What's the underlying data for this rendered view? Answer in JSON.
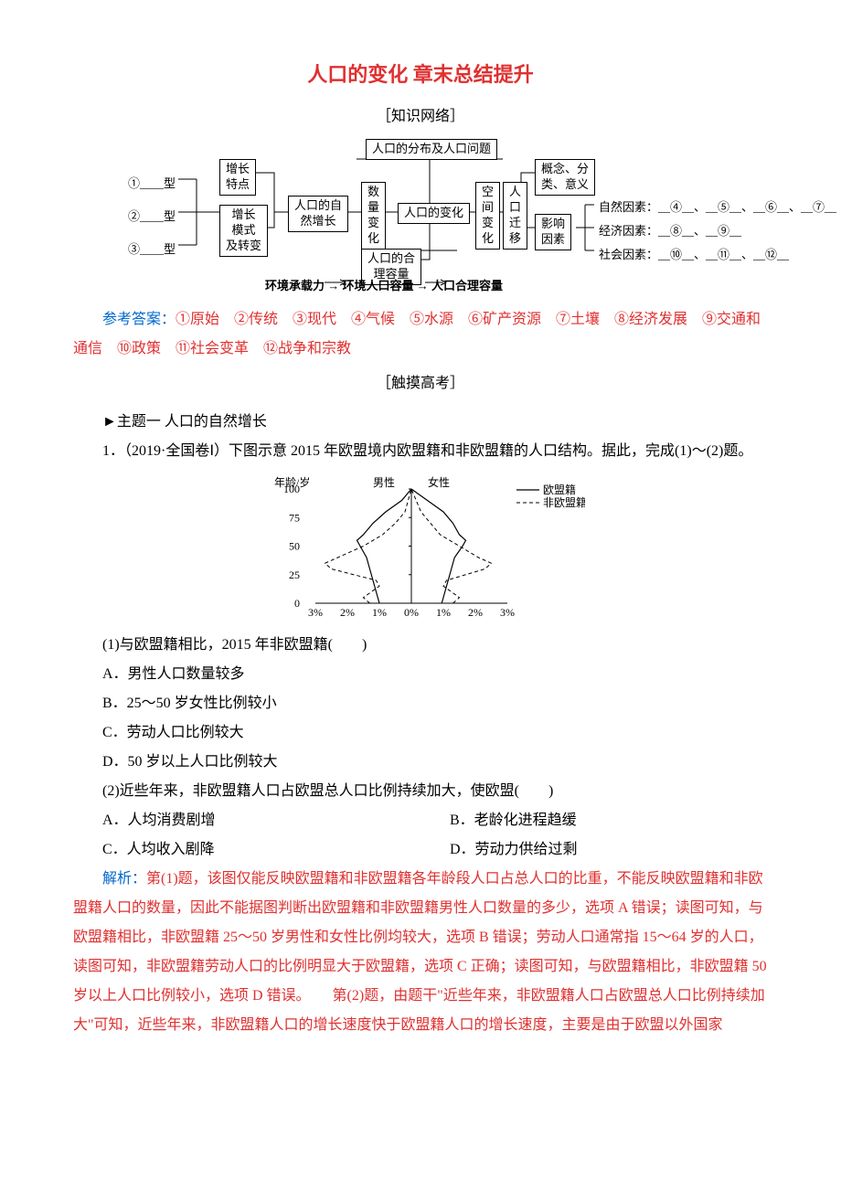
{
  "title": "人口的变化 章末总结提升",
  "section_network": "［知识网络］",
  "diagram": {
    "top_box": "人口的分布及人口问题",
    "left_types": [
      "①____型",
      "②____型",
      "③____型"
    ],
    "left_mid1": "增长\n特点",
    "left_mid2": "增长\n模式\n及转变",
    "natural_growth": "人口的自\n然增长",
    "qty_change": "数\n量\n变\n化",
    "center_box": "人口的变化",
    "space_change": "空\n间\n变\n化",
    "migration": "人\n口\n迁\n移",
    "concept_box": "概念、分\n类、意义",
    "factor_box": "影响\n因素",
    "capacity_box": "人口的合\n理容量",
    "right_lines": [
      "自然因素：__④__、__⑤__、__⑥__、__⑦__",
      "经济因素：__⑧__、__⑨__",
      "社会因素：__⑩__、__⑪__、__⑫__"
    ],
    "bottom_line": "环境承载力 → 环境人口容量 → 人口合理容量"
  },
  "answers_label": "参考答案：",
  "answers_text": "①原始　②传统　③现代　④气候　⑤水源　⑥矿产资源　⑦土壤　⑧经济发展　⑨交通和通信　⑩政策　⑪社会变革　⑫战争和宗教",
  "section_exam": "［触摸高考］",
  "topic1": "►主题一 人口的自然增长",
  "q1_stem": "1．（2019·全国卷Ⅰ）下图示意 2015 年欧盟境内欧盟籍和非欧盟籍的人口结构。据此，完成(1)～(2)题。",
  "chart": {
    "type": "population-pyramid-line",
    "y_label": "年龄/岁",
    "y_ticks": [
      0,
      25,
      50,
      75,
      100
    ],
    "x_ticks_left": [
      "3%",
      "2%",
      "1%",
      "0%"
    ],
    "x_ticks_right": [
      "0%",
      "1%",
      "2%",
      "3%"
    ],
    "legend": {
      "male": "男性",
      "female": "女性",
      "eu": "欧盟籍",
      "non_eu": "非欧盟籍"
    },
    "line_eu_style": "solid",
    "line_non_eu_style": "dashed",
    "stroke_color": "#000000",
    "background_color": "#ffffff",
    "axis_fontsize": 12,
    "male_eu": [
      {
        "age": 0,
        "pct": 1.0
      },
      {
        "age": 10,
        "pct": 1.1
      },
      {
        "age": 20,
        "pct": 1.2
      },
      {
        "age": 30,
        "pct": 1.3
      },
      {
        "age": 40,
        "pct": 1.4
      },
      {
        "age": 50,
        "pct": 1.6
      },
      {
        "age": 55,
        "pct": 1.7
      },
      {
        "age": 60,
        "pct": 1.5
      },
      {
        "age": 70,
        "pct": 1.2
      },
      {
        "age": 80,
        "pct": 0.8
      },
      {
        "age": 90,
        "pct": 0.3
      },
      {
        "age": 100,
        "pct": 0.0
      }
    ],
    "male_non_eu": [
      {
        "age": 0,
        "pct": 1.3
      },
      {
        "age": 5,
        "pct": 1.5
      },
      {
        "age": 15,
        "pct": 1.0
      },
      {
        "age": 20,
        "pct": 1.1
      },
      {
        "age": 30,
        "pct": 2.5
      },
      {
        "age": 35,
        "pct": 2.7
      },
      {
        "age": 40,
        "pct": 2.3
      },
      {
        "age": 50,
        "pct": 1.5
      },
      {
        "age": 60,
        "pct": 0.9
      },
      {
        "age": 70,
        "pct": 0.5
      },
      {
        "age": 80,
        "pct": 0.2
      },
      {
        "age": 100,
        "pct": 0.0
      }
    ],
    "female_eu": [
      {
        "age": 0,
        "pct": 0.95
      },
      {
        "age": 10,
        "pct": 1.05
      },
      {
        "age": 20,
        "pct": 1.15
      },
      {
        "age": 30,
        "pct": 1.25
      },
      {
        "age": 40,
        "pct": 1.35
      },
      {
        "age": 50,
        "pct": 1.6
      },
      {
        "age": 55,
        "pct": 1.7
      },
      {
        "age": 60,
        "pct": 1.5
      },
      {
        "age": 70,
        "pct": 1.3
      },
      {
        "age": 80,
        "pct": 1.0
      },
      {
        "age": 90,
        "pct": 0.5
      },
      {
        "age": 100,
        "pct": 0.0
      }
    ],
    "female_non_eu": [
      {
        "age": 0,
        "pct": 1.3
      },
      {
        "age": 5,
        "pct": 1.5
      },
      {
        "age": 15,
        "pct": 1.0
      },
      {
        "age": 20,
        "pct": 1.1
      },
      {
        "age": 30,
        "pct": 2.3
      },
      {
        "age": 35,
        "pct": 2.5
      },
      {
        "age": 40,
        "pct": 2.1
      },
      {
        "age": 50,
        "pct": 1.5
      },
      {
        "age": 60,
        "pct": 0.9
      },
      {
        "age": 70,
        "pct": 0.6
      },
      {
        "age": 80,
        "pct": 0.3
      },
      {
        "age": 100,
        "pct": 0.0
      }
    ]
  },
  "q1_1": "(1)与欧盟籍相比，2015 年非欧盟籍(　　)",
  "q1_1_opts": [
    "A．男性人口数量较多",
    "B．25～50 岁女性比例较小",
    "C．劳动人口比例较大",
    "D．50 岁以上人口比例较大"
  ],
  "q1_2": "(2)近些年来，非欧盟籍人口占欧盟总人口比例持续加大，使欧盟(　　)",
  "q1_2_opts": {
    "A": "A．人均消费剧增",
    "B": "B．老龄化进程趋缓",
    "C": "C．人均收入剧降",
    "D": "D．劳动力供给过剩"
  },
  "explain_label": "解析：",
  "explain_text": "第(1)题，该图仅能反映欧盟籍和非欧盟籍各年龄段人口占总人口的比重，不能反映欧盟籍和非欧盟籍人口的数量，因此不能据图判断出欧盟籍和非欧盟籍男性人口数量的多少，选项 A 错误；读图可知，与欧盟籍相比，非欧盟籍 25～50 岁男性和女性比例均较大，选项 B 错误；劳动人口通常指 15～64 岁的人口，读图可知，非欧盟籍劳动人口的比例明显大于欧盟籍，选项 C 正确；读图可知，与欧盟籍相比，非欧盟籍 50 岁以上人口比例较小，选项 D 错误。　　第(2)题，由题干\"近些年来，非欧盟籍人口占欧盟总人口比例持续加大\"可知，近些年来，非欧盟籍人口的增长速度快于欧盟籍人口的增长速度，主要是由于欧盟以外国家"
}
